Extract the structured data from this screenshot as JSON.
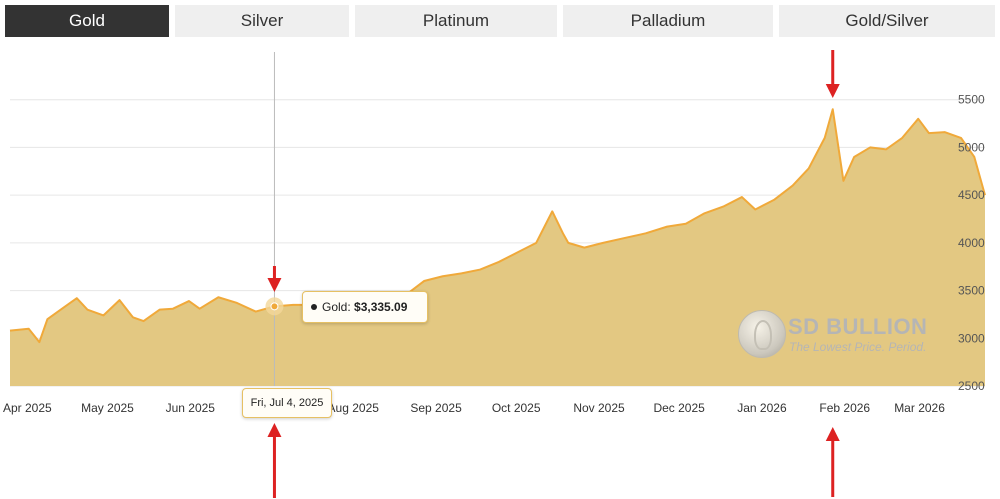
{
  "tabs": [
    {
      "label": "Gold",
      "active": true
    },
    {
      "label": "Silver",
      "active": false
    },
    {
      "label": "Platinum",
      "active": false
    },
    {
      "label": "Palladium",
      "active": false
    },
    {
      "label": "Gold/Silver",
      "active": false
    }
  ],
  "colors": {
    "area_fill": "#e3c882",
    "line": "#f0a93a",
    "grid": "#e6e6e6",
    "arrow": "#dd2222",
    "active_tab": "#333333",
    "tab": "#efefef"
  },
  "tooltip": {
    "series_label": "Gold: ",
    "value": "$3,335.09",
    "date_label": "Fri, Jul 4, 2025",
    "date": "2025-07-04"
  },
  "watermark": {
    "brand": "SD BULLION",
    "slogan": "The Lowest Price. Period."
  },
  "chart_data": {
    "type": "area",
    "title": "",
    "xlabel": "",
    "ylabel": "",
    "ylim": [
      2500,
      6000
    ],
    "y_ticks": [
      2500,
      3000,
      3500,
      4000,
      4500,
      5000,
      5500
    ],
    "y_axis_position": "right",
    "grid": true,
    "x_tick_labels": [
      "Apr 2025",
      "May 2025",
      "Jun 2025",
      "Aug 2025",
      "Sep 2025",
      "Oct 2025",
      "Nov 2025",
      "Dec 2025",
      "Jan 2026",
      "Feb 2026",
      "Mar 2026"
    ],
    "x_tick_dates": [
      "2025-04-01",
      "2025-05-01",
      "2025-06-01",
      "2025-08-01",
      "2025-09-01",
      "2025-10-01",
      "2025-11-01",
      "2025-12-01",
      "2026-01-01",
      "2026-02-01",
      "2026-03-01"
    ],
    "x_range": [
      "2025-03-27",
      "2026-03-27"
    ],
    "series": [
      {
        "x": [
          "2025-03-27",
          "2025-04-03",
          "2025-04-07",
          "2025-04-10",
          "2025-04-16",
          "2025-04-21",
          "2025-04-25",
          "2025-05-01",
          "2025-05-07",
          "2025-05-12",
          "2025-05-16",
          "2025-05-22",
          "2025-05-27",
          "2025-06-02",
          "2025-06-06",
          "2025-06-13",
          "2025-06-20",
          "2025-06-27",
          "2025-07-04",
          "2025-07-11",
          "2025-07-18",
          "2025-07-25",
          "2025-08-01",
          "2025-08-08",
          "2025-08-15",
          "2025-08-22",
          "2025-08-29",
          "2025-09-05",
          "2025-09-12",
          "2025-09-19",
          "2025-09-26",
          "2025-10-03",
          "2025-10-10",
          "2025-10-16",
          "2025-10-20",
          "2025-10-22",
          "2025-10-28",
          "2025-11-04",
          "2025-11-12",
          "2025-11-20",
          "2025-11-28",
          "2025-12-05",
          "2025-12-12",
          "2025-12-19",
          "2025-12-26",
          "2025-12-31",
          "2026-01-07",
          "2026-01-14",
          "2026-01-20",
          "2026-01-26",
          "2026-01-29",
          "2026-02-02",
          "2026-02-06",
          "2026-02-12",
          "2026-02-18",
          "2026-02-24",
          "2026-03-02",
          "2026-03-06",
          "2026-03-12",
          "2026-03-18",
          "2026-03-23",
          "2026-03-27"
        ],
        "y": [
          3080,
          3100,
          2960,
          3200,
          3320,
          3420,
          3300,
          3240,
          3400,
          3220,
          3180,
          3300,
          3310,
          3390,
          3310,
          3430,
          3370,
          3280,
          3335,
          3350,
          3350,
          3340,
          3360,
          3390,
          3380,
          3450,
          3600,
          3650,
          3680,
          3720,
          3800,
          3900,
          4000,
          4330,
          4100,
          4000,
          3950,
          4000,
          4050,
          4100,
          4170,
          4200,
          4310,
          4380,
          4480,
          4350,
          4450,
          4600,
          4780,
          5100,
          5400,
          4650,
          4900,
          5000,
          4980,
          5100,
          5300,
          5150,
          5160,
          5100,
          4900,
          4500
        ]
      }
    ]
  }
}
